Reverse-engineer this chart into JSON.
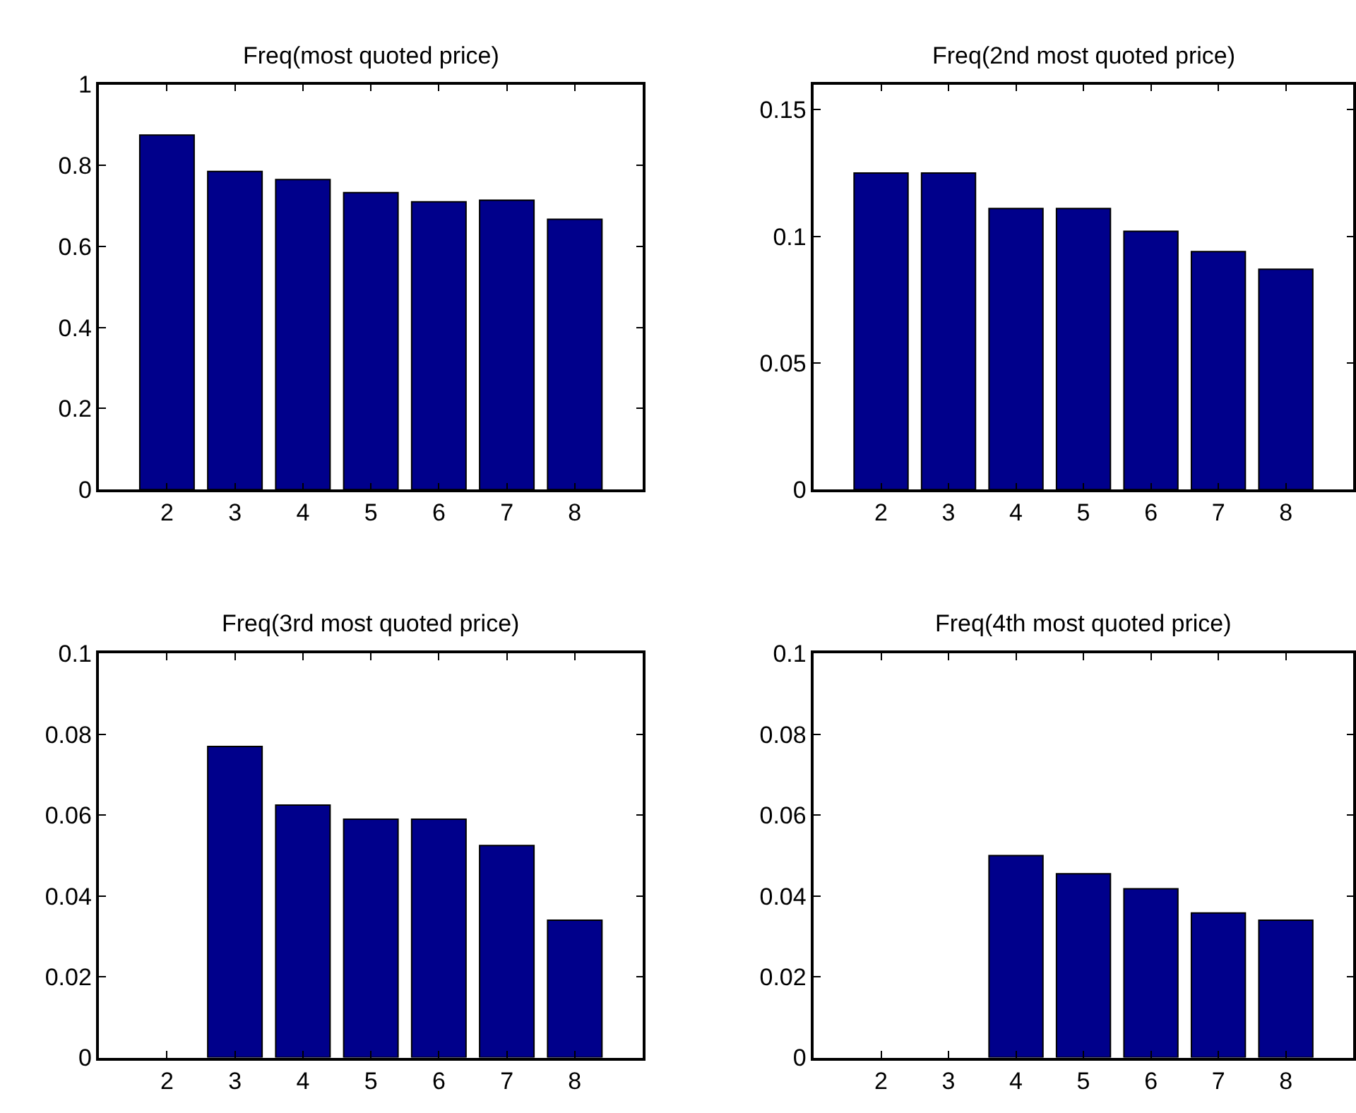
{
  "chart_data": [
    {
      "type": "bar",
      "title": "Freq(most quoted price)",
      "categories": [
        "2",
        "3",
        "4",
        "5",
        "6",
        "7",
        "8"
      ],
      "values": [
        0.875,
        0.785,
        0.765,
        0.733,
        0.71,
        0.714,
        0.667
      ],
      "color": "#00008b",
      "ylim": [
        0,
        1
      ],
      "yticks": [
        0,
        0.2,
        0.4,
        0.6,
        0.8,
        1
      ]
    },
    {
      "type": "bar",
      "title": "Freq(2nd most quoted price)",
      "categories": [
        "2",
        "3",
        "4",
        "5",
        "6",
        "7",
        "8"
      ],
      "values": [
        0.125,
        0.125,
        0.111,
        0.111,
        0.102,
        0.094,
        0.087
      ],
      "color": "#00008b",
      "ylim": [
        0,
        0.16
      ],
      "yticks": [
        0,
        0.05,
        0.1,
        0.15
      ]
    },
    {
      "type": "bar",
      "title": "Freq(3rd most quoted price)",
      "categories": [
        "2",
        "3",
        "4",
        "5",
        "6",
        "7",
        "8"
      ],
      "values": [
        null,
        0.077,
        0.0625,
        0.059,
        0.059,
        0.0525,
        0.034
      ],
      "color": "#00008b",
      "ylim": [
        0,
        0.1
      ],
      "yticks": [
        0,
        0.02,
        0.04,
        0.06,
        0.08,
        0.1
      ]
    },
    {
      "type": "bar",
      "title": "Freq(4th most quoted price)",
      "categories": [
        "2",
        "3",
        "4",
        "5",
        "6",
        "7",
        "8"
      ],
      "values": [
        null,
        null,
        0.05,
        0.0455,
        0.0418,
        0.0358,
        0.034
      ],
      "color": "#00008b",
      "ylim": [
        0,
        0.1
      ],
      "yticks": [
        0,
        0.02,
        0.04,
        0.06,
        0.08,
        0.1
      ]
    }
  ]
}
